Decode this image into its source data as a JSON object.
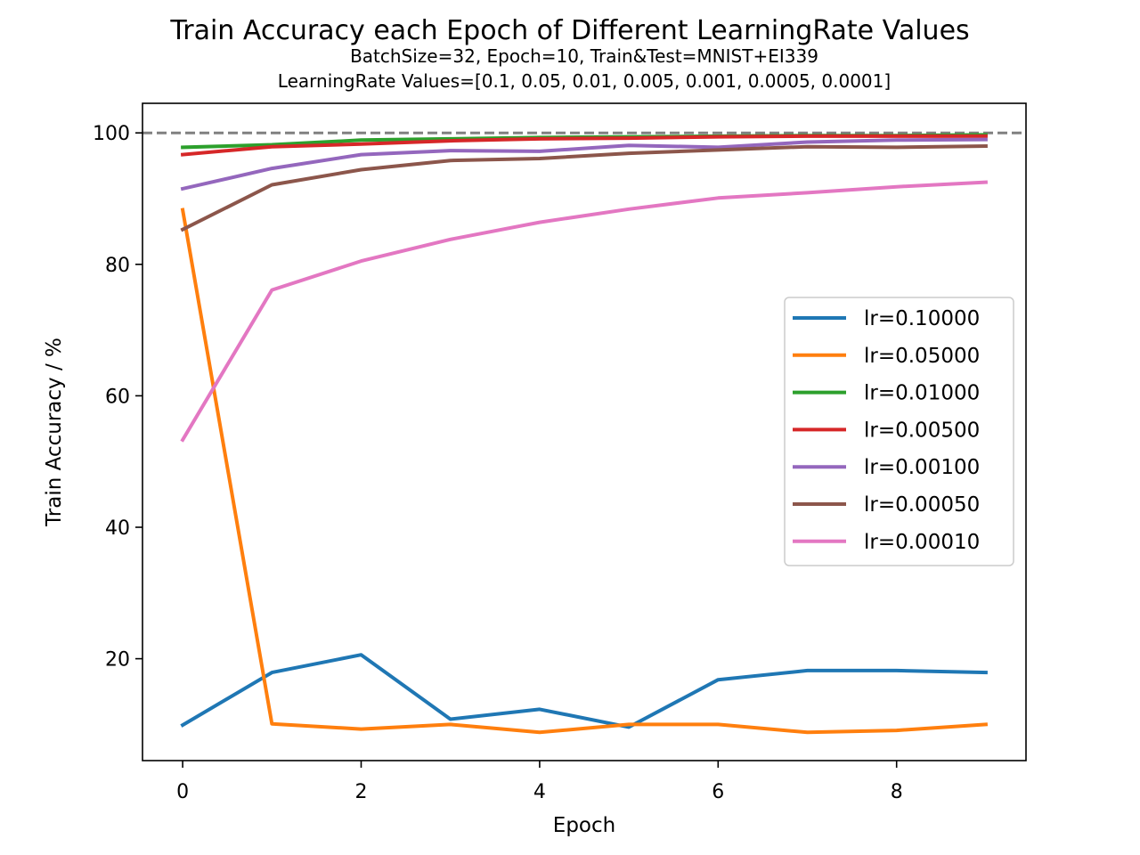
{
  "chart_data": {
    "type": "line",
    "title": "Train Accuracy each Epoch of Different LearningRate Values",
    "subtitle": "BatchSize=32, Epoch=10, Train&Test=MNIST+EI339",
    "subtitle2": "LearningRate Values=[0.1, 0.05, 0.01, 0.005, 0.001, 0.0005, 0.0001]",
    "xlabel": "Epoch",
    "ylabel": "Train Accuracy / %",
    "x": [
      0,
      1,
      2,
      3,
      4,
      5,
      6,
      7,
      8,
      9
    ],
    "xlim": [
      -0.45,
      9.45
    ],
    "ylim": [
      4.5,
      104.5
    ],
    "xticks": [
      0,
      2,
      4,
      6,
      8
    ],
    "yticks": [
      20,
      40,
      60,
      80,
      100
    ],
    "reference_line": {
      "y": 100,
      "color": "#808080",
      "style": "dashed"
    },
    "grid": false,
    "legend_position": "center-right",
    "series": [
      {
        "name": "lr=0.10000",
        "color": "#1f77b4",
        "values": [
          9.9,
          17.9,
          20.6,
          10.8,
          12.3,
          9.6,
          16.8,
          18.2,
          18.2,
          17.9
        ]
      },
      {
        "name": "lr=0.05000",
        "color": "#ff7f0e",
        "values": [
          88.3,
          10.1,
          9.3,
          10.0,
          8.8,
          10.0,
          10.0,
          8.8,
          9.1,
          10.0
        ]
      },
      {
        "name": "lr=0.01000",
        "color": "#2ca02c",
        "values": [
          97.8,
          98.2,
          98.9,
          99.1,
          99.3,
          99.4,
          99.5,
          99.6,
          99.6,
          99.7
        ]
      },
      {
        "name": "lr=0.00500",
        "color": "#d62728",
        "values": [
          96.7,
          97.9,
          98.3,
          98.8,
          99.1,
          99.2,
          99.4,
          99.5,
          99.5,
          99.5
        ]
      },
      {
        "name": "lr=0.00100",
        "color": "#9467bd",
        "values": [
          91.5,
          94.6,
          96.7,
          97.3,
          97.2,
          98.1,
          97.8,
          98.6,
          98.9,
          99.0
        ]
      },
      {
        "name": "lr=0.00050",
        "color": "#8c564b",
        "values": [
          85.3,
          92.1,
          94.4,
          95.8,
          96.1,
          96.9,
          97.4,
          97.9,
          97.8,
          98.0
        ]
      },
      {
        "name": "lr=0.00010",
        "color": "#e377c2",
        "values": [
          53.3,
          76.1,
          80.5,
          83.8,
          86.4,
          88.4,
          90.1,
          90.9,
          91.8,
          92.5
        ]
      }
    ]
  }
}
